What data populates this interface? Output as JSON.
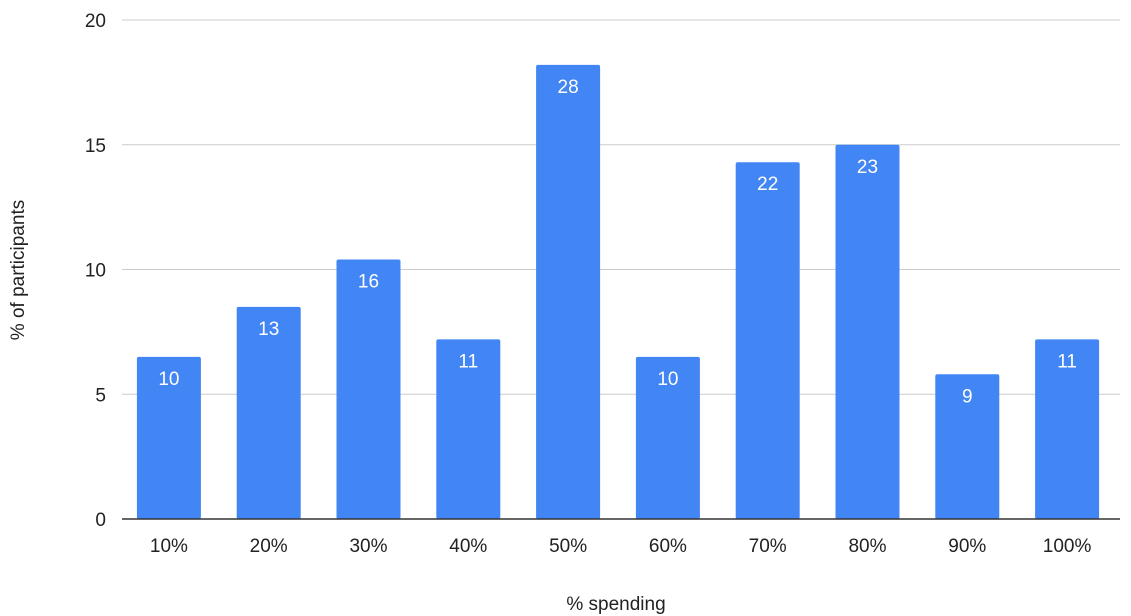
{
  "chart_data": {
    "type": "bar",
    "categories": [
      "10%",
      "20%",
      "30%",
      "40%",
      "50%",
      "60%",
      "70%",
      "80%",
      "90%",
      "100%"
    ],
    "values": [
      6.5,
      8.5,
      10.4,
      7.2,
      18.2,
      6.5,
      14.3,
      15.0,
      5.8,
      7.2
    ],
    "data_labels": [
      "10",
      "13",
      "16",
      "11",
      "28",
      "10",
      "22",
      "23",
      "9",
      "11"
    ],
    "xlabel": "% spending",
    "ylabel": "% of participants",
    "ylim": [
      0,
      20
    ],
    "yticks": [
      "0",
      "5",
      "10",
      "15",
      "20"
    ],
    "grid": true,
    "bar_color": "#4285F4",
    "gridline_color": "#cccccc",
    "axis_color": "#333333"
  }
}
